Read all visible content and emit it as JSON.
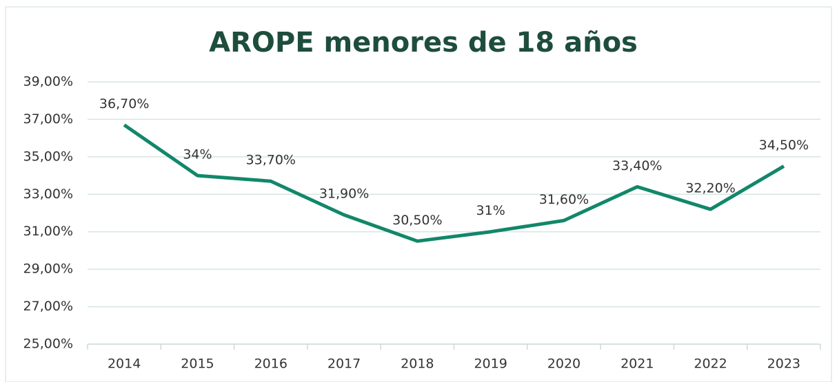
{
  "chart_data": {
    "type": "line",
    "title": "AROPE menores de 18 años",
    "categories": [
      "2014",
      "2015",
      "2016",
      "2017",
      "2018",
      "2019",
      "2020",
      "2021",
      "2022",
      "2023"
    ],
    "series": [
      {
        "name": "AROPE menores de 18 años",
        "color": "#12876a",
        "values": [
          36.7,
          34,
          33.7,
          31.9,
          30.5,
          31,
          31.6,
          33.4,
          32.2,
          34.5
        ],
        "value_labels": [
          "36,70%",
          "34%",
          "33,70%",
          "31,90%",
          "30,50%",
          "31%",
          "31,60%",
          "33,40%",
          "32,20%",
          "34,50%"
        ]
      }
    ],
    "ylim": [
      25,
      39
    ],
    "yticks": [
      {
        "value": 25,
        "label": "25,00%"
      },
      {
        "value": 27,
        "label": "27,00%"
      },
      {
        "value": 29,
        "label": "29,00%"
      },
      {
        "value": 31,
        "label": "31,00%"
      },
      {
        "value": 33,
        "label": "33,00%"
      },
      {
        "value": 35,
        "label": "35,00%"
      },
      {
        "value": 37,
        "label": "37,00%"
      },
      {
        "value": 39,
        "label": "39,00%"
      }
    ],
    "grid": true
  }
}
